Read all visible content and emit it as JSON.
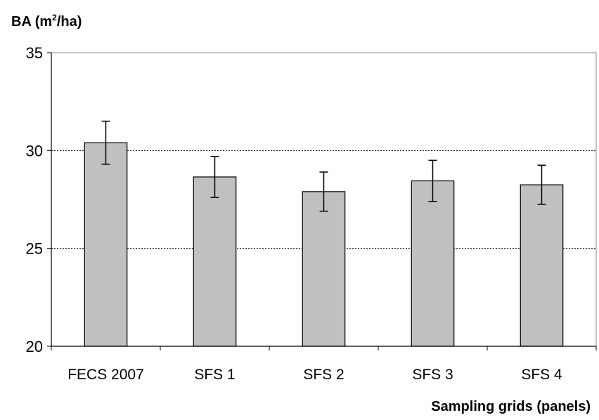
{
  "chart_data": {
    "type": "bar",
    "title": "",
    "ylabel": {
      "prefix": "BA (m",
      "superscript": "2",
      "suffix": "/ha)"
    },
    "xlabel": "Sampling grids (panels)",
    "categories": [
      "FECS 2007",
      "SFS 1",
      "SFS 2",
      "SFS 3",
      "SFS 4"
    ],
    "values": [
      30.4,
      28.65,
      27.9,
      28.45,
      28.25
    ],
    "error": [
      [
        29.3,
        31.5
      ],
      [
        27.6,
        29.7
      ],
      [
        26.9,
        28.9
      ],
      [
        27.4,
        29.5
      ],
      [
        27.25,
        29.25
      ]
    ],
    "ylim": [
      20,
      35
    ],
    "yticks": [
      20,
      25,
      30,
      35
    ],
    "grid": {
      "y": true,
      "style": "dotted"
    },
    "colors": {
      "bar_fill": "#c0c0c0",
      "bar_stroke": "#000000",
      "grid": "#000000"
    }
  }
}
